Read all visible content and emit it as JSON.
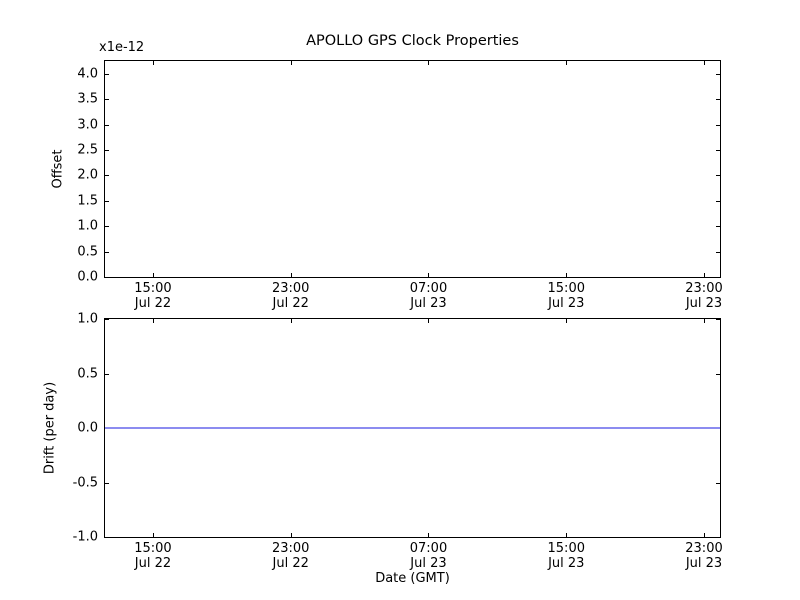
{
  "figure": {
    "title": "APOLLO GPS Clock Properties",
    "background": "#ffffff",
    "axis_color": "#000000"
  },
  "chart_data": [
    {
      "type": "line",
      "name": "offset-subplot",
      "ylabel": "Offset",
      "y_offset_text": "x1e-12",
      "ylim": [
        0.0,
        4.25
      ],
      "yticks": [
        {
          "value": 0.0,
          "label": "0.0"
        },
        {
          "value": 0.5,
          "label": "0.5"
        },
        {
          "value": 1.0,
          "label": "1.0"
        },
        {
          "value": 1.5,
          "label": "1.5"
        },
        {
          "value": 2.0,
          "label": "2.0"
        },
        {
          "value": 2.5,
          "label": "2.5"
        },
        {
          "value": 3.0,
          "label": "3.0"
        },
        {
          "value": 3.5,
          "label": "3.5"
        },
        {
          "value": 4.0,
          "label": "4.0"
        }
      ],
      "xticks": [
        {
          "frac": 0.078,
          "time": "15:00",
          "date": "Jul 22"
        },
        {
          "frac": 0.302,
          "time": "23:00",
          "date": "Jul 22"
        },
        {
          "frac": 0.526,
          "time": "07:00",
          "date": "Jul 23"
        },
        {
          "frac": 0.75,
          "time": "15:00",
          "date": "Jul 23"
        },
        {
          "frac": 0.974,
          "time": "23:00",
          "date": "Jul 23"
        }
      ],
      "grid": false,
      "series": []
    },
    {
      "type": "line",
      "name": "drift-subplot",
      "ylabel": "Drift (per day)",
      "xlabel": "Date (GMT)",
      "ylim": [
        -1.0,
        1.0
      ],
      "yticks": [
        {
          "value": -1.0,
          "label": "-1.0"
        },
        {
          "value": -0.5,
          "label": "-0.5"
        },
        {
          "value": 0.0,
          "label": "0.0"
        },
        {
          "value": 0.5,
          "label": "0.5"
        },
        {
          "value": 1.0,
          "label": "1.0"
        }
      ],
      "xticks": [
        {
          "frac": 0.078,
          "time": "15:00",
          "date": "Jul 22"
        },
        {
          "frac": 0.302,
          "time": "23:00",
          "date": "Jul 22"
        },
        {
          "frac": 0.526,
          "time": "07:00",
          "date": "Jul 23"
        },
        {
          "frac": 0.75,
          "time": "15:00",
          "date": "Jul 23"
        },
        {
          "frac": 0.974,
          "time": "23:00",
          "date": "Jul 23"
        }
      ],
      "grid": false,
      "series": [
        {
          "name": "drift",
          "constant_y": 0.0,
          "color": "#8c8cf0"
        }
      ]
    }
  ]
}
